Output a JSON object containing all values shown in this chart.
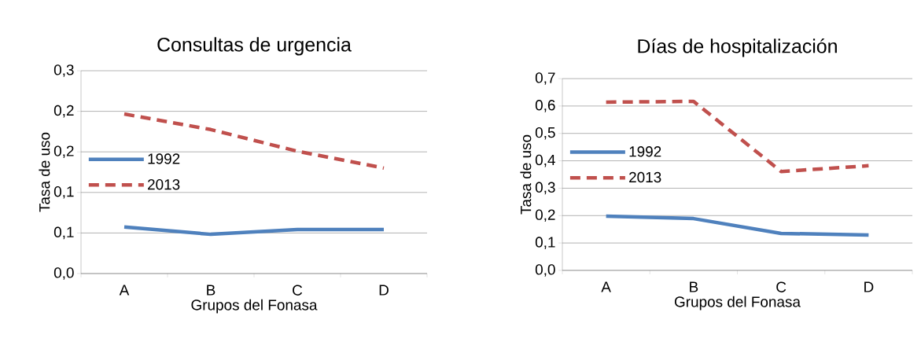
{
  "chart_data": [
    {
      "type": "line",
      "title": "Consultas de urgencia",
      "xlabel": "Grupos del Fonasa",
      "ylabel": "Tasa de uso",
      "categories": [
        "A",
        "B",
        "C",
        "D"
      ],
      "series": [
        {
          "name": "1992",
          "color": "#4f81bd",
          "line_style": "solid",
          "values": [
            0.069,
            0.058,
            0.065,
            0.065
          ]
        },
        {
          "name": "2013",
          "color": "#c0504d",
          "line_style": "dashed",
          "values": [
            0.236,
            0.213,
            0.181,
            0.156
          ]
        }
      ],
      "ylim": [
        0,
        0.3
      ],
      "yticks": [
        {
          "value": 0,
          "label": "0,0"
        },
        {
          "value": 0.06,
          "label": "0,1"
        },
        {
          "value": 0.12,
          "label": "0,1"
        },
        {
          "value": 0.18,
          "label": "0,2"
        },
        {
          "value": 0.24,
          "label": "0,2"
        },
        {
          "value": 0.3,
          "label": "0,3"
        }
      ],
      "grid": "y",
      "legend": "left"
    },
    {
      "type": "line",
      "title": "Días de hospitalización",
      "xlabel": "Grupos del Fonasa",
      "ylabel": "Tasa de uso",
      "categories": [
        "A",
        "B",
        "C",
        "D"
      ],
      "series": [
        {
          "name": "1992",
          "color": "#4f81bd",
          "line_style": "solid",
          "values": [
            0.198,
            0.189,
            0.135,
            0.129
          ]
        },
        {
          "name": "2013",
          "color": "#c0504d",
          "line_style": "dashed",
          "values": [
            0.614,
            0.617,
            0.361,
            0.382
          ]
        }
      ],
      "ylim": [
        0,
        0.7
      ],
      "yticks": [
        {
          "value": 0,
          "label": "0,0"
        },
        {
          "value": 0.1,
          "label": "0,1"
        },
        {
          "value": 0.2,
          "label": "0,2"
        },
        {
          "value": 0.3,
          "label": "0,3"
        },
        {
          "value": 0.4,
          "label": "0,4"
        },
        {
          "value": 0.5,
          "label": "0,5"
        },
        {
          "value": 0.6,
          "label": "0,6"
        },
        {
          "value": 0.7,
          "label": "0,7"
        }
      ],
      "grid": "y",
      "legend": "left"
    }
  ]
}
